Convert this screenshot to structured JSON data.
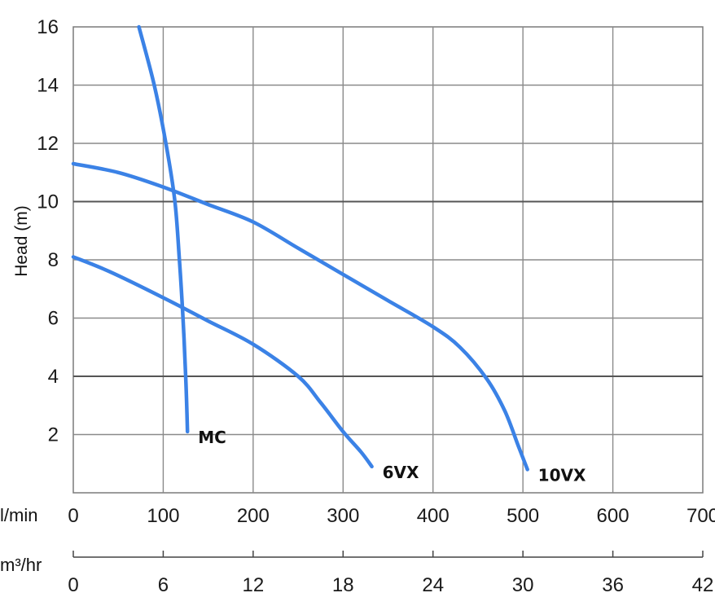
{
  "chart_data": {
    "type": "line",
    "ylabel": "Head (m)",
    "y_ticks": [
      2,
      4,
      6,
      8,
      10,
      12,
      14,
      16
    ],
    "ylim": [
      0,
      16
    ],
    "x_unit_label": "l/min",
    "x_ticks": [
      0,
      100,
      200,
      300,
      400,
      500,
      600,
      700
    ],
    "xlim": [
      0,
      700
    ],
    "x2_unit_label": "m³/hr",
    "x2_ticks": [
      0,
      6,
      12,
      18,
      24,
      30,
      36,
      42
    ],
    "x2lim": [
      0,
      42
    ],
    "grid": true,
    "series_color": "#3b82e6",
    "series": [
      {
        "name": "MC",
        "points": [
          [
            73,
            16
          ],
          [
            90,
            14
          ],
          [
            103,
            12
          ],
          [
            113,
            10
          ],
          [
            118,
            8
          ],
          [
            122,
            6
          ],
          [
            125,
            4
          ],
          [
            127,
            2.1
          ]
        ]
      },
      {
        "name": "6VX",
        "points": [
          [
            0,
            8.1
          ],
          [
            40,
            7.6
          ],
          [
            100,
            6.7
          ],
          [
            150,
            5.9
          ],
          [
            200,
            5.1
          ],
          [
            250,
            4.0
          ],
          [
            275,
            3.1
          ],
          [
            300,
            2.1
          ],
          [
            320,
            1.4
          ],
          [
            332,
            0.9
          ]
        ]
      },
      {
        "name": "10VX",
        "points": [
          [
            0,
            11.3
          ],
          [
            50,
            11.0
          ],
          [
            100,
            10.5
          ],
          [
            150,
            9.9
          ],
          [
            200,
            9.3
          ],
          [
            250,
            8.4
          ],
          [
            300,
            7.5
          ],
          [
            350,
            6.6
          ],
          [
            400,
            5.7
          ],
          [
            430,
            5.0
          ],
          [
            460,
            3.9
          ],
          [
            480,
            2.8
          ],
          [
            495,
            1.6
          ],
          [
            505,
            0.8
          ]
        ]
      }
    ]
  }
}
